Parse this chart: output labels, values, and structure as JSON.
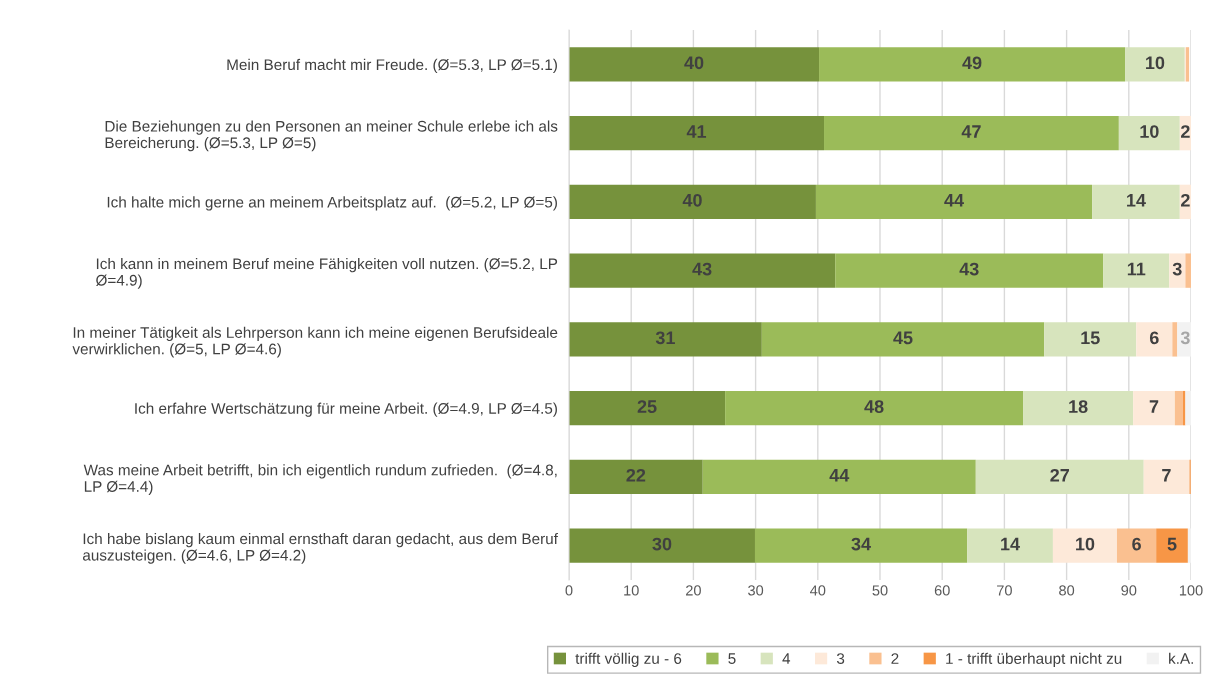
{
  "chart_data": {
    "type": "bar",
    "orientation": "horizontal",
    "stacked": true,
    "categories": [
      "Mein Beruf macht mir Freude. (Ø=5.3, LP Ø=5.1)",
      "Die Beziehungen zu den Personen an meiner Schule erlebe ich als\nBereicherung. (Ø=5.3, LP Ø=5)",
      "Ich halte mich gerne an meinem Arbeitsplatz auf.  (Ø=5.2, LP Ø=5)",
      "Ich kann in meinem Beruf meine Fähigkeiten voll nutzen. (Ø=5.2, LP\nØ=4.9)",
      "In meiner Tätigkeit als Lehrperson kann ich meine eigenen Berufsideale\nverwirklichen. (Ø=5, LP Ø=4.6)",
      "Ich erfahre Wertschätzung für meine Arbeit. (Ø=4.9, LP Ø=4.5)",
      "Was meine Arbeit betrifft, bin ich eigentlich rundum zufrieden.  (Ø=4.8,\nLP Ø=4.4)",
      "Ich habe bislang kaum einmal ernsthaft daran gedacht, aus dem Beruf\nauszusteigen. (Ø=4.6, LP Ø=4.2)"
    ],
    "series": [
      {
        "name": "trifft völlig zu - 6",
        "color": "#76923c",
        "values": [
          40.2,
          41.0,
          39.7,
          42.8,
          31.0,
          25.1,
          21.5,
          29.9
        ],
        "value_labels": [
          "40",
          "41",
          "40",
          "43",
          "31",
          "25",
          "22",
          "30"
        ]
      },
      {
        "name": "5",
        "color": "#9bbb59",
        "values": [
          49.2,
          47.4,
          44.4,
          43.1,
          45.4,
          47.9,
          43.9,
          34.1
        ],
        "value_labels": [
          "49",
          "47",
          "44",
          "43",
          "45",
          "48",
          "44",
          "34"
        ]
      },
      {
        "name": "4",
        "color": "#d7e4bd",
        "values": [
          9.6,
          9.8,
          14.1,
          10.6,
          14.8,
          17.7,
          27.0,
          13.8
        ],
        "value_labels": [
          "10",
          "10",
          "14",
          "11",
          "15",
          "18",
          "27",
          "14"
        ]
      },
      {
        "name": "3",
        "color": "#fde9d9",
        "values": [
          0.2,
          1.8,
          1.8,
          2.6,
          5.8,
          6.7,
          7.3,
          10.3
        ],
        "value_labels": [
          null,
          "2",
          "2",
          "3",
          "6",
          "7",
          "7",
          "10"
        ]
      },
      {
        "name": "2",
        "color": "#fac090",
        "values": [
          0.5,
          null,
          null,
          1.0,
          0.8,
          1.3,
          0.2,
          6.3
        ],
        "value_labels": [
          null,
          null,
          null,
          null,
          null,
          null,
          null,
          "6"
        ]
      },
      {
        "name": "1 - trifft überhaupt nicht zu",
        "color": "#f79646",
        "values": [
          null,
          null,
          null,
          null,
          null,
          0.4,
          0.5,
          5.1
        ],
        "value_labels": [
          null,
          null,
          null,
          null,
          null,
          null,
          null,
          "5"
        ]
      },
      {
        "name": "k.A.",
        "color": "#f2f2f2",
        "values": [
          null,
          null,
          null,
          null,
          2.6,
          1.0,
          null,
          0.5
        ],
        "value_labels": [
          null,
          null,
          null,
          null,
          "3",
          null,
          null,
          null
        ]
      }
    ],
    "xlim": [
      0,
      100
    ],
    "xticks": [
      0,
      10,
      20,
      30,
      40,
      50,
      60,
      70,
      80,
      90,
      100
    ],
    "grid": "x",
    "legend": "bottom"
  }
}
